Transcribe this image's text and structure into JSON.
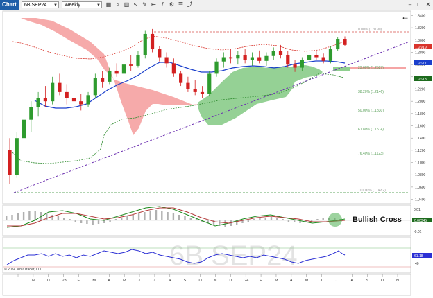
{
  "toolbar": {
    "chart_tab": "Chart",
    "instrument": "6B SEP24",
    "interval": "Weekly",
    "icons": [
      "grid-icon",
      "search-icon",
      "bar-style-icon",
      "pointer-icon",
      "draw-icon",
      "scroll-left-icon",
      "indicators-icon",
      "strategy-icon",
      "properties-icon",
      "share-icon"
    ]
  },
  "window": {
    "minimize": "–",
    "maximize": "□",
    "close": "✕"
  },
  "watermark": "6B SEP24",
  "copyright": "© 2024 NinjaTrader, LLC",
  "annotation": "Bullish Cross",
  "back_arrow": "←",
  "price_labels": {
    "last": "1.2919",
    "blue_ma": "1.2677",
    "green_ma": "1.2613"
  },
  "fib_labels": [
    "0.00% (1.3190)",
    "23.60% (1.2527)",
    "38.20% (1.2146)",
    "50.00% (1.1830)",
    "61.80% (1.1514)",
    "76.40% (1.1123)",
    "100.00% (1.0482)"
  ],
  "macd_labels": {
    "tick_top": "0.01",
    "tick_bottom": "-0.01",
    "value": "0.00345"
  },
  "rsi_labels": {
    "value": "61.18",
    "tick": "40"
  },
  "chart_data": {
    "type": "candlestick",
    "y_ticks": [
      "1.3400",
      "1.3200",
      "1.3000",
      "1.2800",
      "1.2600",
      "1.2400",
      "1.2200",
      "1.2000",
      "1.1800",
      "1.1600",
      "1.1400",
      "1.1200",
      "1.1000",
      "1.0800",
      "1.0600",
      "1.0400"
    ],
    "ylim": [
      1.035,
      1.345
    ],
    "x_ticks": [
      "O",
      "N",
      "D",
      "23",
      "F",
      "M",
      "A",
      "M",
      "J",
      "J",
      "A",
      "S",
      "O",
      "N",
      "D",
      "24",
      "F",
      "M",
      "A",
      "M",
      "J",
      "J",
      "A",
      "S",
      "O",
      "N"
    ],
    "candles": [
      [
        1.12,
        1.14,
        1.065,
        1.08
      ],
      [
        1.08,
        1.15,
        1.075,
        1.14
      ],
      [
        1.14,
        1.18,
        1.11,
        1.17
      ],
      [
        1.17,
        1.2,
        1.15,
        1.19
      ],
      [
        1.19,
        1.215,
        1.175,
        1.205
      ],
      [
        1.205,
        1.225,
        1.19,
        1.2
      ],
      [
        1.2,
        1.24,
        1.195,
        1.23
      ],
      [
        1.23,
        1.245,
        1.21,
        1.215
      ],
      [
        1.215,
        1.228,
        1.195,
        1.205
      ],
      [
        1.205,
        1.222,
        1.192,
        1.2
      ],
      [
        1.2,
        1.212,
        1.185,
        1.195
      ],
      [
        1.195,
        1.215,
        1.19,
        1.21
      ],
      [
        1.21,
        1.245,
        1.205,
        1.238
      ],
      [
        1.238,
        1.25,
        1.222,
        1.232
      ],
      [
        1.232,
        1.255,
        1.228,
        1.25
      ],
      [
        1.25,
        1.262,
        1.24,
        1.245
      ],
      [
        1.245,
        1.265,
        1.238,
        1.26
      ],
      [
        1.26,
        1.275,
        1.25,
        1.258
      ],
      [
        1.258,
        1.282,
        1.255,
        1.275
      ],
      [
        1.275,
        1.315,
        1.27,
        1.31
      ],
      [
        1.31,
        1.318,
        1.28,
        1.285
      ],
      [
        1.285,
        1.29,
        1.265,
        1.272
      ],
      [
        1.272,
        1.28,
        1.255,
        1.262
      ],
      [
        1.262,
        1.27,
        1.24,
        1.245
      ],
      [
        1.245,
        1.25,
        1.225,
        1.23
      ],
      [
        1.23,
        1.24,
        1.215,
        1.22
      ],
      [
        1.22,
        1.235,
        1.21,
        1.215
      ],
      [
        1.215,
        1.225,
        1.205,
        1.212
      ],
      [
        1.212,
        1.25,
        1.208,
        1.245
      ],
      [
        1.245,
        1.27,
        1.24,
        1.265
      ],
      [
        1.265,
        1.28,
        1.255,
        1.272
      ],
      [
        1.272,
        1.285,
        1.262,
        1.27
      ],
      [
        1.27,
        1.282,
        1.26,
        1.275
      ],
      [
        1.275,
        1.285,
        1.262,
        1.268
      ],
      [
        1.268,
        1.28,
        1.258,
        1.272
      ],
      [
        1.272,
        1.283,
        1.262,
        1.266
      ],
      [
        1.266,
        1.28,
        1.258,
        1.274
      ],
      [
        1.274,
        1.288,
        1.268,
        1.282
      ],
      [
        1.282,
        1.292,
        1.27,
        1.276
      ],
      [
        1.276,
        1.282,
        1.255,
        1.26
      ],
      [
        1.26,
        1.268,
        1.248,
        1.255
      ],
      [
        1.255,
        1.272,
        1.25,
        1.268
      ],
      [
        1.268,
        1.28,
        1.262,
        1.276
      ],
      [
        1.276,
        1.282,
        1.268,
        1.272
      ],
      [
        1.272,
        1.278,
        1.262,
        1.266
      ],
      [
        1.266,
        1.29,
        1.262,
        1.285
      ],
      [
        1.285,
        1.305,
        1.282,
        1.302
      ],
      [
        1.302,
        1.306,
        1.29,
        1.292
      ]
    ],
    "series": [
      {
        "values": [
          1.19,
          1.195,
          1.2,
          1.205,
          1.21,
          1.22,
          1.225,
          1.23,
          1.235,
          1.24,
          1.245,
          1.25,
          1.255,
          1.258,
          1.262,
          1.262,
          1.26,
          1.255,
          1.252,
          1.25,
          1.252,
          1.255,
          1.258,
          1.26,
          1.262,
          1.265,
          1.266,
          1.268
        ]
      }
    ]
  }
}
